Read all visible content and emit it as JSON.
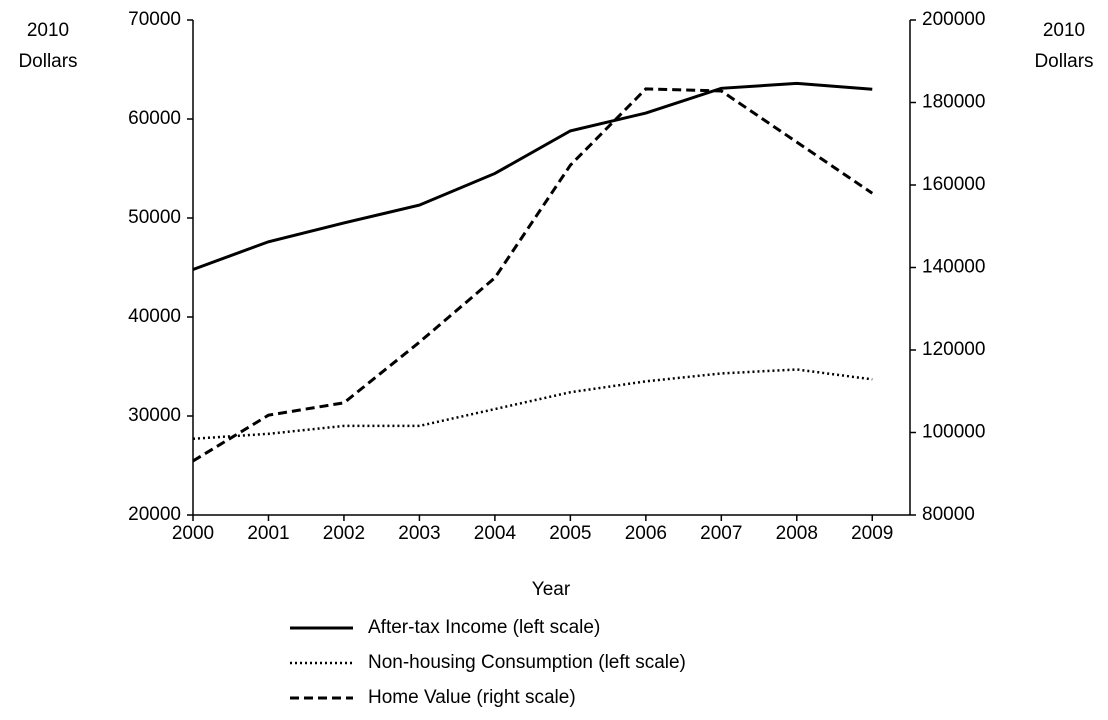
{
  "chart_data": {
    "type": "line",
    "xlabel": "Year",
    "ylabel": [
      "2010",
      "Dollars"
    ],
    "y2label": [
      "2010",
      "Dollars"
    ],
    "x": [
      2000,
      2001,
      2002,
      2003,
      2004,
      2005,
      2006,
      2007,
      2008,
      2009
    ],
    "xlim": [
      2000,
      2009.5
    ],
    "xticks": [
      2000,
      2001,
      2002,
      2003,
      2004,
      2005,
      2006,
      2007,
      2008,
      2009
    ],
    "ylim": [
      20000,
      70000
    ],
    "yticks": [
      20000,
      30000,
      40000,
      50000,
      60000,
      70000
    ],
    "y2lim": [
      80000,
      200000
    ],
    "y2ticks": [
      80000,
      100000,
      120000,
      140000,
      160000,
      180000,
      200000
    ],
    "grid": false,
    "legend": "bottom",
    "series": [
      {
        "name": "After-tax Income (left scale)",
        "color": "#000000",
        "style": "solid",
        "values": [
          44800,
          47600,
          49500,
          51300,
          54500,
          58800,
          60600,
          63100,
          63600,
          63000
        ]
      },
      {
        "name": "Non-housing Consumption (left scale)",
        "color": "#000000",
        "style": "dotted",
        "values": [
          27700,
          28200,
          29000,
          29000,
          30700,
          32400,
          33500,
          34300,
          34700,
          33700
        ]
      },
      {
        "name": "Home Value (right scale)",
        "color": "#000000",
        "style": "dashed",
        "axis": "y2",
        "values": [
          93100,
          104200,
          107200,
          121900,
          137500,
          164800,
          183300,
          182800,
          170400,
          158000
        ]
      }
    ]
  }
}
